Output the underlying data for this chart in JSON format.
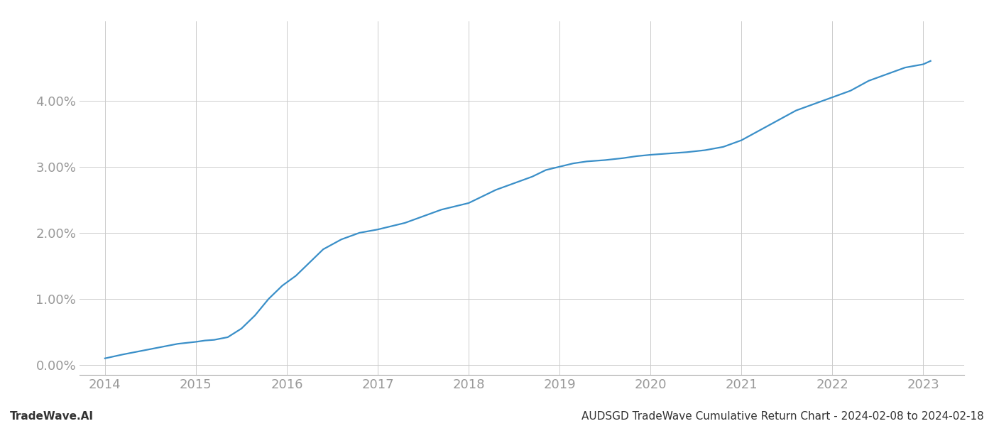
{
  "title": "AUDSGD TradeWave Cumulative Return Chart - 2024-02-08 to 2024-02-18",
  "watermark": "TradeWave.AI",
  "line_color": "#3a8fc8",
  "background_color": "#ffffff",
  "grid_color": "#cccccc",
  "x_years": [
    2014,
    2015,
    2016,
    2017,
    2018,
    2019,
    2020,
    2021,
    2022,
    2023
  ],
  "x_data": [
    2014.0,
    2014.1,
    2014.2,
    2014.35,
    2014.5,
    2014.65,
    2014.8,
    2015.0,
    2015.1,
    2015.2,
    2015.35,
    2015.5,
    2015.65,
    2015.8,
    2015.95,
    2016.1,
    2016.25,
    2016.4,
    2016.6,
    2016.8,
    2017.0,
    2017.15,
    2017.3,
    2017.5,
    2017.7,
    2017.85,
    2018.0,
    2018.15,
    2018.3,
    2018.5,
    2018.7,
    2018.85,
    2019.0,
    2019.15,
    2019.3,
    2019.5,
    2019.7,
    2019.85,
    2020.0,
    2020.2,
    2020.4,
    2020.6,
    2020.8,
    2021.0,
    2021.2,
    2021.4,
    2021.6,
    2021.8,
    2022.0,
    2022.2,
    2022.4,
    2022.6,
    2022.8,
    2023.0,
    2023.08
  ],
  "y_data": [
    0.001,
    0.0013,
    0.0016,
    0.002,
    0.0024,
    0.0028,
    0.0032,
    0.0035,
    0.0037,
    0.0038,
    0.0042,
    0.0055,
    0.0075,
    0.01,
    0.012,
    0.0135,
    0.0155,
    0.0175,
    0.019,
    0.02,
    0.0205,
    0.021,
    0.0215,
    0.0225,
    0.0235,
    0.024,
    0.0245,
    0.0255,
    0.0265,
    0.0275,
    0.0285,
    0.0295,
    0.03,
    0.0305,
    0.0308,
    0.031,
    0.0313,
    0.0316,
    0.0318,
    0.032,
    0.0322,
    0.0325,
    0.033,
    0.034,
    0.0355,
    0.037,
    0.0385,
    0.0395,
    0.0405,
    0.0415,
    0.043,
    0.044,
    0.045,
    0.0455,
    0.046
  ],
  "ylim": [
    -0.0015,
    0.052
  ],
  "yticks": [
    0.0,
    0.01,
    0.02,
    0.03,
    0.04
  ],
  "xlim": [
    2013.72,
    2023.45
  ],
  "tick_color": "#999999",
  "tick_fontsize": 13,
  "footer_fontsize": 11,
  "line_width": 1.6
}
